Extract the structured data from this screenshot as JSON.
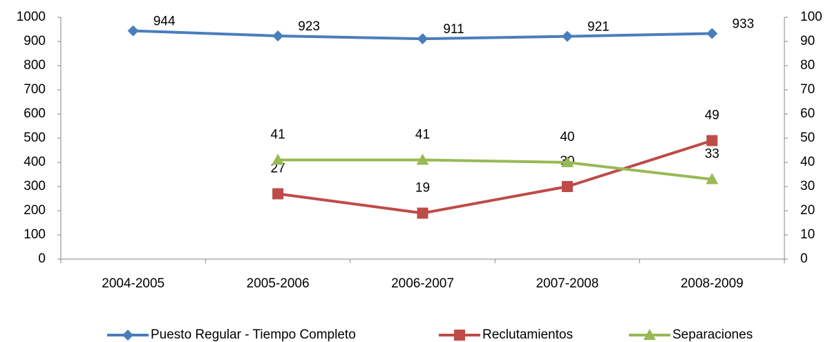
{
  "chart_data": {
    "type": "line",
    "categories": [
      "2004-2005",
      "2005-2006",
      "2006-2007",
      "2007-2008",
      "2008-2009"
    ],
    "series": [
      {
        "name": "Puesto Regular - Tiempo Completo",
        "color": "#4a7ebb",
        "marker": "diamond",
        "values": [
          944,
          923,
          911,
          921,
          933
        ]
      },
      {
        "name": "Reclutamientos",
        "color": "#be4b48",
        "marker": "square",
        "axis": "y2",
        "values": [
          null,
          27,
          19,
          30,
          49
        ]
      },
      {
        "name": "Separaciones",
        "color": "#98b954",
        "marker": "triangle",
        "axis": "y2",
        "values": [
          null,
          41,
          41,
          40,
          33
        ]
      }
    ],
    "ylim": [
      0,
      1000
    ],
    "yticks": [
      0,
      100,
      200,
      300,
      400,
      500,
      600,
      700,
      800,
      900,
      1000
    ],
    "y2lim": [
      0,
      100
    ],
    "y2ticks": [
      0,
      10,
      20,
      30,
      40,
      50,
      60,
      70,
      80,
      90,
      100
    ],
    "grid": false,
    "legend": "bottom"
  }
}
